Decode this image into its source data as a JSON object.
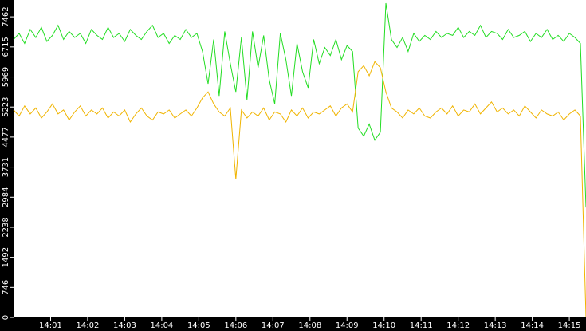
{
  "chart_data": {
    "type": "line",
    "x": [
      0,
      0.15,
      0.3,
      0.45,
      0.6,
      0.75,
      0.9,
      1.05,
      1.2,
      1.35,
      1.5,
      1.65,
      1.8,
      1.95,
      2.1,
      2.25,
      2.4,
      2.55,
      2.7,
      2.85,
      3,
      3.15,
      3.3,
      3.45,
      3.6,
      3.75,
      3.9,
      4.05,
      4.2,
      4.35,
      4.5,
      4.65,
      4.8,
      4.95,
      5.1,
      5.25,
      5.4,
      5.55,
      5.7,
      5.85,
      6,
      6.15,
      6.3,
      6.45,
      6.6,
      6.75,
      6.9,
      7.05,
      7.2,
      7.35,
      7.5,
      7.65,
      7.8,
      7.95,
      8.1,
      8.25,
      8.4,
      8.55,
      8.7,
      8.85,
      9,
      9.15,
      9.3,
      9.45,
      9.6,
      9.75,
      9.9,
      10.05,
      10.2,
      10.35,
      10.5,
      10.65,
      10.8,
      10.95,
      11.1,
      11.25,
      11.4,
      11.55,
      11.7,
      11.85,
      12,
      12.15,
      12.3,
      12.45,
      12.6,
      12.75,
      12.9,
      13.05,
      13.2,
      13.35,
      13.5,
      13.65,
      13.8,
      13.95,
      14.1,
      14.25,
      14.4,
      14.55,
      14.7,
      14.85,
      15,
      15.15,
      15.3,
      15.45
    ],
    "series": [
      {
        "color": "#22dd22",
        "values": [
          6900,
          7050,
          6800,
          7150,
          6950,
          7200,
          6850,
          7000,
          7250,
          6900,
          7100,
          6950,
          7050,
          6800,
          7150,
          7000,
          6900,
          7200,
          6950,
          7050,
          6850,
          7150,
          7000,
          6900,
          7100,
          7250,
          6950,
          7050,
          6800,
          7000,
          6900,
          7150,
          6950,
          7050,
          6600,
          5800,
          6900,
          5500,
          7100,
          6300,
          5600,
          6950,
          5400,
          7100,
          6200,
          7000,
          5900,
          5300,
          7050,
          6400,
          5500,
          6800,
          6100,
          5700,
          6900,
          6300,
          6700,
          6500,
          6900,
          6400,
          6750,
          6600,
          4700,
          4500,
          4800,
          4400,
          4600,
          7800,
          6900,
          6700,
          6950,
          6600,
          7050,
          6850,
          7000,
          6900,
          7100,
          6950,
          7050,
          7000,
          7200,
          6950,
          7100,
          7000,
          7250,
          6950,
          7100,
          7050,
          6900,
          7150,
          6950,
          7000,
          7100,
          6850,
          7050,
          6950,
          7150,
          6900,
          7000,
          6850,
          7050,
          6950,
          6800,
          2730
        ]
      },
      {
        "color": "#f0b400",
        "values": [
          5150,
          5000,
          5250,
          5050,
          5200,
          4950,
          5100,
          5300,
          5050,
          5150,
          4900,
          5100,
          5250,
          5000,
          5150,
          5050,
          5200,
          4950,
          5100,
          5000,
          5150,
          4850,
          5050,
          5200,
          5000,
          4900,
          5100,
          5050,
          5150,
          4950,
          5050,
          5150,
          5000,
          5200,
          5450,
          5600,
          5300,
          5100,
          5000,
          5200,
          3430,
          5150,
          4950,
          5100,
          5000,
          5200,
          4900,
          5100,
          5050,
          4850,
          5150,
          5000,
          5200,
          4950,
          5100,
          5050,
          5150,
          5250,
          5000,
          5200,
          5300,
          5100,
          6100,
          6250,
          6000,
          6350,
          6200,
          5600,
          5200,
          5100,
          4950,
          5150,
          5050,
          5200,
          5000,
          4950,
          5100,
          5200,
          5050,
          5250,
          5000,
          5150,
          5100,
          5300,
          5050,
          5200,
          5350,
          5100,
          5200,
          5050,
          5150,
          5000,
          5250,
          5100,
          4950,
          5150,
          5050,
          5000,
          5100,
          4900,
          5050,
          5150,
          5000,
          0
        ]
      }
    ],
    "xlim": [
      0,
      15.45
    ],
    "xticks": [
      {
        "value": 1,
        "label": "14:01"
      },
      {
        "value": 2,
        "label": "14:02"
      },
      {
        "value": 3,
        "label": "14:03"
      },
      {
        "value": 4,
        "label": "14:04"
      },
      {
        "value": 5,
        "label": "14:05"
      },
      {
        "value": 6,
        "label": "14:06"
      },
      {
        "value": 7,
        "label": "14:07"
      },
      {
        "value": 8,
        "label": "14:08"
      },
      {
        "value": 9,
        "label": "14:09"
      },
      {
        "value": 10,
        "label": "14:10"
      },
      {
        "value": 11,
        "label": "14:11"
      },
      {
        "value": 12,
        "label": "14:12"
      },
      {
        "value": 13,
        "label": "14:13"
      },
      {
        "value": 14,
        "label": "14:14"
      },
      {
        "value": 15,
        "label": "14:15"
      }
    ],
    "ylim": [
      0,
      7880
    ],
    "yticks": [
      0,
      746,
      1492,
      2238,
      2984,
      3731,
      4477,
      5223,
      5969,
      6715,
      7462
    ]
  }
}
